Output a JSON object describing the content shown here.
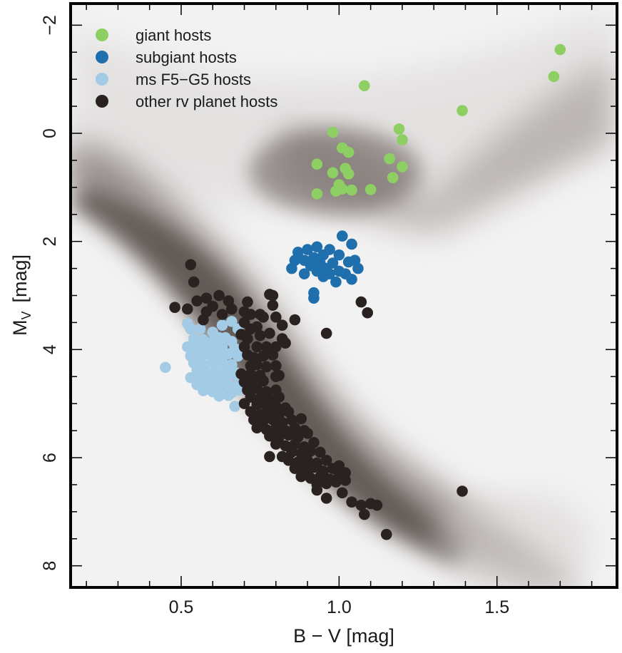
{
  "chart_data": {
    "type": "scatter",
    "xlabel": "B − V  [mag]",
    "ylabel_main": "M",
    "ylabel_sub": "V",
    "ylabel_unit": "[mag]",
    "xlim": [
      0.15,
      1.88
    ],
    "ylim": [
      8.4,
      -2.4
    ],
    "y_inverted": true,
    "x_ticks": [
      0.5,
      1.0,
      1.5
    ],
    "x_tick_labels": [
      "0.5",
      "1.0",
      "1.5"
    ],
    "y_ticks": [
      -2,
      0,
      2,
      4,
      6,
      8
    ],
    "y_tick_labels": [
      "−2",
      "0",
      "2",
      "4",
      "6",
      "8"
    ],
    "grid": false,
    "legend_position": "top-left",
    "background": "grey density map of stellar populations (main sequence and red giant branch)",
    "series": [
      {
        "name": "giant hosts",
        "color": "#8dcf62",
        "points": [
          [
            1.7,
            -1.55
          ],
          [
            1.68,
            -1.05
          ],
          [
            1.08,
            -0.88
          ],
          [
            1.39,
            -0.42
          ],
          [
            0.98,
            -0.02
          ],
          [
            1.19,
            -0.08
          ],
          [
            1.2,
            0.12
          ],
          [
            1.01,
            0.27
          ],
          [
            1.03,
            0.35
          ],
          [
            1.16,
            0.47
          ],
          [
            0.93,
            0.57
          ],
          [
            1.2,
            0.62
          ],
          [
            1.02,
            0.65
          ],
          [
            0.98,
            0.73
          ],
          [
            1.03,
            0.75
          ],
          [
            1.17,
            0.82
          ],
          [
            1.0,
            0.95
          ],
          [
            1.01,
            1.03
          ],
          [
            1.04,
            1.05
          ],
          [
            0.99,
            1.07
          ],
          [
            1.1,
            1.04
          ],
          [
            0.93,
            1.12
          ]
        ]
      },
      {
        "name": "subgiant hosts",
        "color": "#1f6fad",
        "points": [
          [
            1.01,
            1.9
          ],
          [
            1.04,
            2.05
          ],
          [
            0.93,
            2.1
          ],
          [
            0.9,
            2.15
          ],
          [
            0.97,
            2.15
          ],
          [
            0.87,
            2.2
          ],
          [
            0.95,
            2.25
          ],
          [
            1.0,
            2.25
          ],
          [
            0.92,
            2.3
          ],
          [
            0.86,
            2.35
          ],
          [
            0.89,
            2.35
          ],
          [
            0.94,
            2.4
          ],
          [
            0.98,
            2.4
          ],
          [
            1.03,
            2.38
          ],
          [
            1.05,
            2.35
          ],
          [
            0.91,
            2.45
          ],
          [
            0.96,
            2.5
          ],
          [
            1.06,
            2.5
          ],
          [
            0.85,
            2.5
          ],
          [
            1.0,
            2.55
          ],
          [
            0.93,
            2.55
          ],
          [
            0.89,
            2.6
          ],
          [
            0.97,
            2.6
          ],
          [
            1.02,
            2.6
          ],
          [
            0.95,
            2.65
          ],
          [
            1.04,
            2.7
          ],
          [
            0.99,
            2.75
          ],
          [
            0.92,
            2.95
          ],
          [
            0.92,
            3.05
          ]
        ]
      },
      {
        "name": "ms F5−G5 hosts",
        "color": "#a4cbe5",
        "points": [
          [
            0.45,
            4.33
          ],
          [
            0.52,
            3.52
          ],
          [
            0.53,
            3.62
          ],
          [
            0.56,
            3.62
          ],
          [
            0.6,
            3.68
          ],
          [
            0.63,
            3.55
          ],
          [
            0.66,
            3.48
          ],
          [
            0.68,
            3.62
          ],
          [
            0.54,
            3.8
          ],
          [
            0.57,
            3.82
          ],
          [
            0.6,
            3.85
          ],
          [
            0.62,
            3.78
          ],
          [
            0.64,
            3.78
          ],
          [
            0.66,
            3.85
          ],
          [
            0.52,
            3.95
          ],
          [
            0.55,
            3.98
          ],
          [
            0.58,
            4.0
          ],
          [
            0.61,
            4.02
          ],
          [
            0.63,
            3.95
          ],
          [
            0.67,
            3.98
          ],
          [
            0.53,
            4.12
          ],
          [
            0.56,
            4.15
          ],
          [
            0.59,
            4.1
          ],
          [
            0.62,
            4.1
          ],
          [
            0.65,
            4.08
          ],
          [
            0.68,
            4.12
          ],
          [
            0.54,
            4.25
          ],
          [
            0.57,
            4.28
          ],
          [
            0.6,
            4.25
          ],
          [
            0.63,
            4.22
          ],
          [
            0.66,
            4.28
          ],
          [
            0.55,
            4.38
          ],
          [
            0.58,
            4.42
          ],
          [
            0.61,
            4.4
          ],
          [
            0.64,
            4.38
          ],
          [
            0.67,
            4.42
          ],
          [
            0.53,
            4.52
          ],
          [
            0.56,
            4.55
          ],
          [
            0.59,
            4.52
          ],
          [
            0.62,
            4.55
          ],
          [
            0.65,
            4.5
          ],
          [
            0.68,
            4.48
          ],
          [
            0.55,
            4.65
          ],
          [
            0.58,
            4.62
          ],
          [
            0.61,
            4.66
          ],
          [
            0.64,
            4.62
          ],
          [
            0.67,
            4.68
          ],
          [
            0.57,
            4.76
          ],
          [
            0.6,
            4.78
          ],
          [
            0.63,
            4.74
          ],
          [
            0.66,
            4.8
          ],
          [
            0.62,
            4.86
          ],
          [
            0.65,
            4.85
          ],
          [
            0.68,
            4.75
          ],
          [
            0.67,
            5.05
          ]
        ]
      },
      {
        "name": "other rv planet hosts",
        "color": "#2a2220",
        "points": [
          [
            0.53,
            2.43
          ],
          [
            0.54,
            2.75
          ],
          [
            0.48,
            3.22
          ],
          [
            0.52,
            3.25
          ],
          [
            0.55,
            3.1
          ],
          [
            0.58,
            3.05
          ],
          [
            0.6,
            3.2
          ],
          [
            0.62,
            3.0
          ],
          [
            0.65,
            3.1
          ],
          [
            0.58,
            3.3
          ],
          [
            0.57,
            3.45
          ],
          [
            0.63,
            3.35
          ],
          [
            0.66,
            3.25
          ],
          [
            0.7,
            3.3
          ],
          [
            0.72,
            3.35
          ],
          [
            0.75,
            3.35
          ],
          [
            0.78,
            2.98
          ],
          [
            0.79,
            3.18
          ],
          [
            0.76,
            3.4
          ],
          [
            0.8,
            3.4
          ],
          [
            0.86,
            3.45
          ],
          [
            0.71,
            3.12
          ],
          [
            0.7,
            3.5
          ],
          [
            0.72,
            3.62
          ],
          [
            0.74,
            3.58
          ],
          [
            0.82,
            3.55
          ],
          [
            0.69,
            3.72
          ],
          [
            0.71,
            3.8
          ],
          [
            0.75,
            3.74
          ],
          [
            0.78,
            3.7
          ],
          [
            0.83,
            3.88
          ],
          [
            0.7,
            3.95
          ],
          [
            0.74,
            3.95
          ],
          [
            0.77,
            3.95
          ],
          [
            0.8,
            3.95
          ],
          [
            0.71,
            4.1
          ],
          [
            0.73,
            4.15
          ],
          [
            0.76,
            4.12
          ],
          [
            0.79,
            4.1
          ],
          [
            0.72,
            4.3
          ],
          [
            0.74,
            4.28
          ],
          [
            0.77,
            4.32
          ],
          [
            0.8,
            4.3
          ],
          [
            0.69,
            4.45
          ],
          [
            0.72,
            4.45
          ],
          [
            0.75,
            4.48
          ],
          [
            0.81,
            4.48
          ],
          [
            0.7,
            4.6
          ],
          [
            0.73,
            4.62
          ],
          [
            0.76,
            4.58
          ],
          [
            0.71,
            4.75
          ],
          [
            0.74,
            4.72
          ],
          [
            0.77,
            4.78
          ],
          [
            0.8,
            4.75
          ],
          [
            0.72,
            4.88
          ],
          [
            0.75,
            4.9
          ],
          [
            0.78,
            4.92
          ],
          [
            0.81,
            4.88
          ],
          [
            0.7,
            5.0
          ],
          [
            0.74,
            5.02
          ],
          [
            0.77,
            5.05
          ],
          [
            0.8,
            5.05
          ],
          [
            0.83,
            5.08
          ],
          [
            0.72,
            5.15
          ],
          [
            0.75,
            5.2
          ],
          [
            0.78,
            5.18
          ],
          [
            0.81,
            5.2
          ],
          [
            0.84,
            5.15
          ],
          [
            0.73,
            5.3
          ],
          [
            0.76,
            5.32
          ],
          [
            0.79,
            5.3
          ],
          [
            0.82,
            5.35
          ],
          [
            0.85,
            5.3
          ],
          [
            0.88,
            5.28
          ],
          [
            0.74,
            5.45
          ],
          [
            0.77,
            5.48
          ],
          [
            0.8,
            5.45
          ],
          [
            0.83,
            5.5
          ],
          [
            0.86,
            5.45
          ],
          [
            0.89,
            5.5
          ],
          [
            0.78,
            5.6
          ],
          [
            0.81,
            5.62
          ],
          [
            0.84,
            5.58
          ],
          [
            0.87,
            5.62
          ],
          [
            0.9,
            5.55
          ],
          [
            0.8,
            5.75
          ],
          [
            0.83,
            5.78
          ],
          [
            0.86,
            5.75
          ],
          [
            0.89,
            5.8
          ],
          [
            0.92,
            5.72
          ],
          [
            0.85,
            5.9
          ],
          [
            0.88,
            5.92
          ],
          [
            0.91,
            5.88
          ],
          [
            0.94,
            5.9
          ],
          [
            0.78,
            5.98
          ],
          [
            0.82,
            5.98
          ],
          [
            0.84,
            6.05
          ],
          [
            0.87,
            6.08
          ],
          [
            0.9,
            6.05
          ],
          [
            0.93,
            6.1
          ],
          [
            0.96,
            6.05
          ],
          [
            0.86,
            6.2
          ],
          [
            0.89,
            6.22
          ],
          [
            0.92,
            6.18
          ],
          [
            0.95,
            6.25
          ],
          [
            0.98,
            6.2
          ],
          [
            1.0,
            6.15
          ],
          [
            0.88,
            6.35
          ],
          [
            0.91,
            6.38
          ],
          [
            0.94,
            6.35
          ],
          [
            0.97,
            6.4
          ],
          [
            1.0,
            6.32
          ],
          [
            1.02,
            6.28
          ],
          [
            0.93,
            6.5
          ],
          [
            0.96,
            6.48
          ],
          [
            0.99,
            6.45
          ],
          [
            1.02,
            6.42
          ],
          [
            0.93,
            6.6
          ],
          [
            1.01,
            6.65
          ],
          [
            0.96,
            6.75
          ],
          [
            1.04,
            6.82
          ],
          [
            1.07,
            6.88
          ],
          [
            1.1,
            6.85
          ],
          [
            1.12,
            6.88
          ],
          [
            1.08,
            7.05
          ],
          [
            1.15,
            7.42
          ],
          [
            0.8,
            4.5
          ],
          [
            0.79,
            3.0
          ],
          [
            0.82,
            3.8
          ],
          [
            0.96,
            3.7
          ],
          [
            1.07,
            3.12
          ],
          [
            1.09,
            3.32
          ],
          [
            1.39,
            6.62
          ],
          [
            0.9,
            6.3
          ]
        ]
      }
    ]
  }
}
